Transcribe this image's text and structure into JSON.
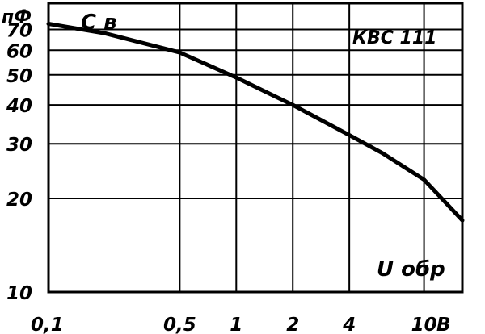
{
  "chart_data": {
    "type": "line",
    "title": "КВС 111",
    "xlabel": "U обр",
    "ylabel": "С в",
    "x_unit": "В",
    "y_unit": "пФ",
    "x_scale": "log",
    "y_scale": "log",
    "xlim": [
      0.1,
      16
    ],
    "ylim": [
      10,
      85
    ],
    "x_ticks": [
      {
        "value": 0.1,
        "label": "0,1"
      },
      {
        "value": 0.5,
        "label": "0,5"
      },
      {
        "value": 1,
        "label": "1"
      },
      {
        "value": 2,
        "label": "2"
      },
      {
        "value": 4,
        "label": "4"
      },
      {
        "value": 10,
        "label": "10"
      }
    ],
    "y_ticks": [
      {
        "value": 10,
        "label": "10"
      },
      {
        "value": 20,
        "label": "20"
      },
      {
        "value": 30,
        "label": "30"
      },
      {
        "value": 40,
        "label": "40"
      },
      {
        "value": 50,
        "label": "50"
      },
      {
        "value": 60,
        "label": "60"
      },
      {
        "value": 70,
        "label": "70"
      }
    ],
    "series": [
      {
        "x": [
          0.1,
          0.2,
          0.5,
          1,
          2,
          4,
          6,
          10,
          16
        ],
        "y": [
          73,
          68,
          59,
          49,
          40,
          32,
          28,
          23,
          17
        ]
      }
    ],
    "grid": true
  }
}
